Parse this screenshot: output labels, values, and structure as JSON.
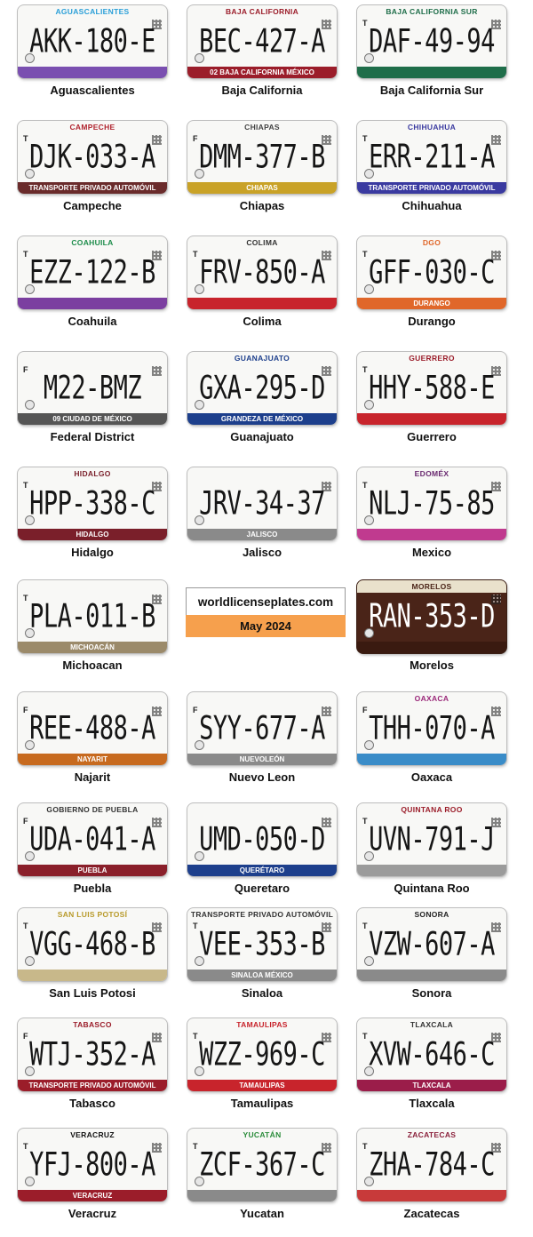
{
  "source": {
    "site": "worldlicenseplates.com",
    "date": "May 2024"
  },
  "plates": [
    {
      "state": "Aguascalientes",
      "number": "AKK-180-E",
      "letter": "",
      "top_text": "Aguascalientes",
      "bottom_text": "",
      "accent": "#2a9fd8",
      "bottom_color": "#7a4fb0"
    },
    {
      "state": "Baja California",
      "number": "BEC-427-A",
      "letter": "",
      "top_text": "Baja California",
      "bottom_text": "02 Baja California México",
      "accent": "#9b1d2a",
      "bottom_color": "#9b1d2a"
    },
    {
      "state": "Baja California Sur",
      "number": "DAF-49-94",
      "letter": "T",
      "top_text": "Baja California Sur",
      "bottom_text": "",
      "accent": "#1f6e4a",
      "bottom_color": "#1f6e4a"
    },
    {
      "state": "Campeche",
      "number": "DJK-033-A",
      "letter": "T",
      "top_text": "Campeche",
      "bottom_text": "Transporte Privado Automóvil",
      "accent": "#b0242f",
      "bottom_color": "#6a2b2b"
    },
    {
      "state": "Chiapas",
      "number": "DMM-377-B",
      "letter": "F",
      "top_text": "Chiapas",
      "bottom_text": "Chiapas",
      "accent": "#444444",
      "bottom_color": "#c9a227"
    },
    {
      "state": "Chihuahua",
      "number": "ERR-211-A",
      "letter": "T",
      "top_text": "Chihuahua",
      "bottom_text": "Transporte Privado Automóvil",
      "accent": "#3a3aa0",
      "bottom_color": "#3a3aa0"
    },
    {
      "state": "Coahuila",
      "number": "EZZ-122-B",
      "letter": "T",
      "top_text": "Coahuila",
      "bottom_text": "",
      "accent": "#1c8c4a",
      "bottom_color": "#7b3fa0"
    },
    {
      "state": "Colima",
      "number": "FRV-850-A",
      "letter": "T",
      "top_text": "Colima",
      "bottom_text": "",
      "accent": "#333333",
      "bottom_color": "#c8242c"
    },
    {
      "state": "Durango",
      "number": "GFF-030-C",
      "letter": "T",
      "top_text": "DGO",
      "bottom_text": "Durango",
      "accent": "#e0672a",
      "bottom_color": "#e0672a"
    },
    {
      "state": "Federal District",
      "number": "M22-BMZ",
      "letter": "F",
      "top_text": "",
      "bottom_text": "09 Ciudad de México",
      "accent": "#9b1d2a",
      "bottom_color": "#555555"
    },
    {
      "state": "Guanajuato",
      "number": "GXA-295-D",
      "letter": "",
      "top_text": "Guanajuato",
      "bottom_text": "Grandeza de México",
      "accent": "#1d3f8c",
      "bottom_color": "#1d3f8c"
    },
    {
      "state": "Guerrero",
      "number": "HHY-588-E",
      "letter": "T",
      "top_text": "Guerrero",
      "bottom_text": "",
      "accent": "#9b1d2a",
      "bottom_color": "#c8242c"
    },
    {
      "state": "Hidalgo",
      "number": "HPP-338-C",
      "letter": "T",
      "top_text": "Hidalgo",
      "bottom_text": "Hidalgo",
      "accent": "#7a1f2a",
      "bottom_color": "#7a1f2a"
    },
    {
      "state": "Jalisco",
      "number": "JRV-34-37",
      "letter": "",
      "top_text": "",
      "bottom_text": "Jalisco",
      "accent": "#999999",
      "bottom_color": "#8a8a8a"
    },
    {
      "state": "Mexico",
      "number": "NLJ-75-85",
      "letter": "T",
      "top_text": "EDOMÉX",
      "bottom_text": "",
      "accent": "#6a2a70",
      "bottom_color": "#c03a8f"
    },
    {
      "state": "Michoacan",
      "number": "PLA-011-B",
      "letter": "T",
      "top_text": "",
      "bottom_text": "Michoacán",
      "accent": "#7a1f2a",
      "bottom_color": "#9b8a6a"
    },
    {
      "state": "Morelos",
      "number": "RAN-353-D",
      "letter": "",
      "top_text": "Morelos",
      "bottom_text": "",
      "accent": "#c8bfa8",
      "bottom_color": "#4a2418",
      "dark": true
    },
    {
      "state": "Najarit",
      "number": "REE-488-A",
      "letter": "F",
      "top_text": "",
      "bottom_text": "Nayarit",
      "accent": "#6a2a2a",
      "bottom_color": "#c76a1f"
    },
    {
      "state": "Nuevo Leon",
      "number": "SYY-677-A",
      "letter": "F",
      "top_text": "",
      "bottom_text": "NuevoLeón",
      "accent": "#c9a227",
      "bottom_color": "#8a8a8a"
    },
    {
      "state": "Oaxaca",
      "number": "THH-070-A",
      "letter": "F",
      "top_text": "Oaxaca",
      "bottom_text": "",
      "accent": "#9b2a7a",
      "bottom_color": "#3a8cc8"
    },
    {
      "state": "Puebla",
      "number": "UDA-041-A",
      "letter": "F",
      "top_text": "Gobierno de Puebla",
      "bottom_text": "Puebla",
      "accent": "#333333",
      "bottom_color": "#8a1f2a"
    },
    {
      "state": "Queretaro",
      "number": "UMD-050-D",
      "letter": "",
      "top_text": "",
      "bottom_text": "Querétaro",
      "accent": "#1d3f8c",
      "bottom_color": "#1d3f8c"
    },
    {
      "state": "Quintana Roo",
      "number": "UVN-791-J",
      "letter": "T",
      "top_text": "Quintana Roo",
      "bottom_text": "",
      "accent": "#9b1d2a",
      "bottom_color": "#9b9b9b"
    },
    {
      "state": "San Luis Potosi",
      "number": "VGG-468-B",
      "letter": "T",
      "top_text": "San Luis Potosí",
      "bottom_text": "",
      "accent": "#b89a2a",
      "bottom_color": "#c8b88a"
    },
    {
      "state": "Sinaloa",
      "number": "VEE-353-B",
      "letter": "T",
      "top_text": "Transporte Privado Automóvil",
      "bottom_text": "Sinaloa México",
      "accent": "#333333",
      "bottom_color": "#8a8a8a"
    },
    {
      "state": "Sonora",
      "number": "VZW-607-A",
      "letter": "T",
      "top_text": "Sonora",
      "bottom_text": "",
      "accent": "#222222",
      "bottom_color": "#8a8a8a"
    },
    {
      "state": "Tabasco",
      "number": "WTJ-352-A",
      "letter": "F",
      "top_text": "Tabasco",
      "bottom_text": "Transporte Privado Automóvil",
      "accent": "#9b1d2a",
      "bottom_color": "#9b1d2a"
    },
    {
      "state": "Tamaulipas",
      "number": "WZZ-969-C",
      "letter": "T",
      "top_text": "Tamaulipas",
      "bottom_text": "Tamaulipas",
      "accent": "#c8242c",
      "bottom_color": "#c8242c"
    },
    {
      "state": "Tlaxcala",
      "number": "XVW-646-C",
      "letter": "T",
      "top_text": "Tlaxcala",
      "bottom_text": "Tlaxcala",
      "accent": "#333333",
      "bottom_color": "#9b1d4a"
    },
    {
      "state": "Veracruz",
      "number": "YFJ-800-A",
      "letter": "T",
      "top_text": "Veracruz",
      "bottom_text": "Veracruz",
      "accent": "#111111",
      "bottom_color": "#9b1d2a"
    },
    {
      "state": "Yucatan",
      "number": "ZCF-367-C",
      "letter": "T",
      "top_text": "Yucatán",
      "bottom_text": "",
      "accent": "#2a8c3a",
      "bottom_color": "#8a8a8a"
    },
    {
      "state": "Zacatecas",
      "number": "ZHA-784-C",
      "letter": "T",
      "top_text": "Zacatecas",
      "bottom_text": "",
      "accent": "#8a1f3a",
      "bottom_color": "#c83a3a"
    }
  ]
}
